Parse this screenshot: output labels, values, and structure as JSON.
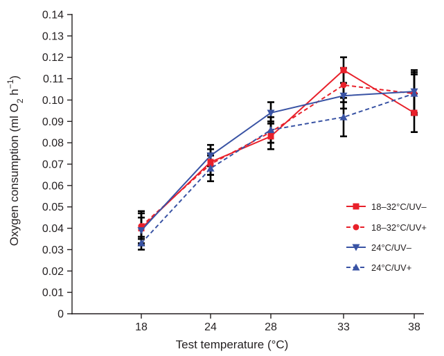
{
  "chart_data": {
    "type": "line",
    "title": "",
    "xlabel": "Test temperature (°C)",
    "ylabel": {
      "pre": "Oxygen consumption (ml O",
      "sub": "2",
      "mid": " h",
      "sup": "−1",
      "post": ")"
    },
    "x": [
      18,
      24,
      28,
      33,
      38
    ],
    "ylim": [
      0,
      0.14
    ],
    "yticks": [
      "0",
      "0.01",
      "0.02",
      "0.03",
      "0.04",
      "0.05",
      "0.06",
      "0.07",
      "0.08",
      "0.09",
      "0.10",
      "0.11",
      "0.12",
      "0.13",
      "0.14"
    ],
    "grid": false,
    "legend_position": "right",
    "series": [
      {
        "name": "18–32°C/UV–",
        "color": "#e8202a",
        "dash": "solid",
        "marker": "square",
        "values": [
          0.04,
          0.071,
          0.083,
          0.114,
          0.094
        ],
        "err": [
          0.008,
          0.006,
          0.006,
          0.006,
          0.009
        ]
      },
      {
        "name": "18–32°C/UV+",
        "color": "#e8202a",
        "dash": "dashed",
        "marker": "circle",
        "values": [
          0.041,
          0.07,
          0.085,
          0.107,
          0.103
        ],
        "err": [
          0.006,
          0.005,
          0.005,
          0.008,
          0.01
        ]
      },
      {
        "name": "24°C/UV–",
        "color": "#3953a4",
        "dash": "solid",
        "marker": "triangle-down",
        "values": [
          0.039,
          0.074,
          0.094,
          0.102,
          0.104
        ],
        "err": [
          0.006,
          0.005,
          0.005,
          0.006,
          0.01
        ]
      },
      {
        "name": "24°C/UV+",
        "color": "#3953a4",
        "dash": "dashed",
        "marker": "triangle-up",
        "values": [
          0.033,
          0.068,
          0.086,
          0.092,
          0.103
        ],
        "err": [
          0.003,
          0.006,
          0.006,
          0.009,
          0.009
        ]
      }
    ]
  }
}
